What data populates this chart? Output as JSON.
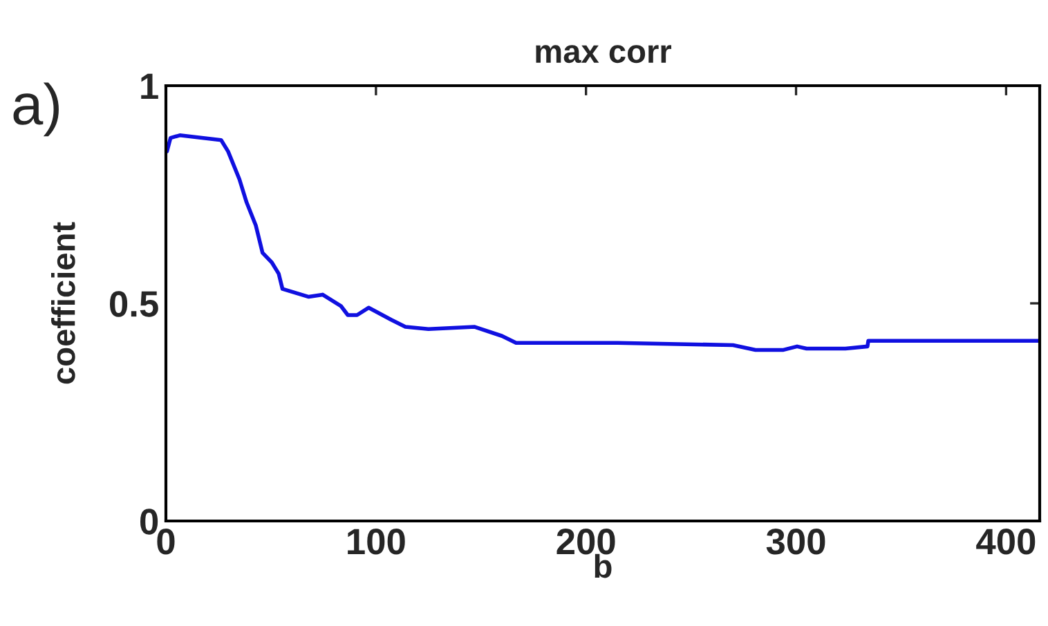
{
  "chart_data": {
    "type": "line",
    "title": "max corr",
    "xlabel": "b",
    "ylabel": "coefficient",
    "annotations": [
      "a)"
    ],
    "xlim": [
      0,
      416
    ],
    "xticks": [
      0,
      100,
      200,
      300,
      400
    ],
    "ylim": [
      0,
      1
    ],
    "yticks": [
      0,
      0.5,
      1
    ],
    "grid": false,
    "legend": false,
    "marker": "none",
    "line_style": "solid",
    "series": [
      {
        "color": "#1010e0",
        "x": [
          0.5,
          2.2,
          6.6,
          26.3,
          29.6,
          35,
          38.4,
          42.8,
          46,
          50.4,
          53.7,
          55.5,
          68,
          74.6,
          83.3,
          86.6,
          91,
          96.5,
          107.4,
          114,
          125,
          147,
          160,
          166.7,
          215,
          270,
          280.7,
          294,
          300.5,
          305,
          323.5,
          334,
          334.4,
          416
        ],
        "values": [
          0.849,
          0.88,
          0.886,
          0.875,
          0.849,
          0.785,
          0.732,
          0.679,
          0.616,
          0.594,
          0.568,
          0.533,
          0.515,
          0.52,
          0.494,
          0.473,
          0.473,
          0.49,
          0.462,
          0.446,
          0.441,
          0.446,
          0.425,
          0.409,
          0.409,
          0.404,
          0.393,
          0.393,
          0.401,
          0.396,
          0.396,
          0.401,
          0.414,
          0.414
        ]
      }
    ]
  }
}
